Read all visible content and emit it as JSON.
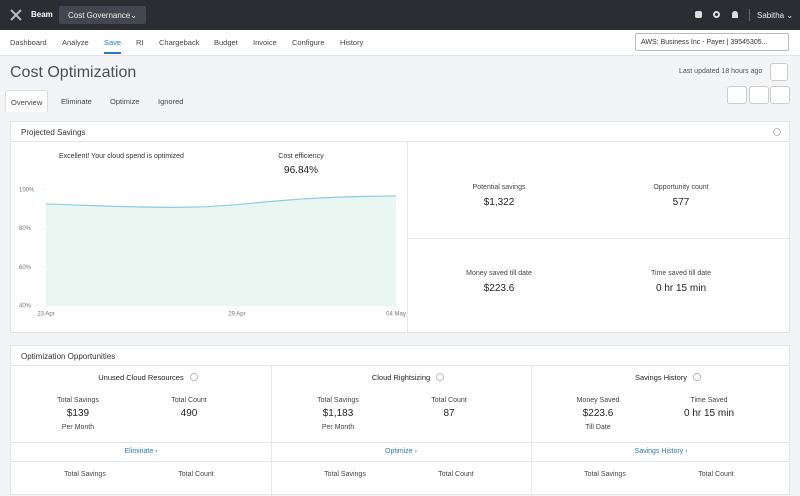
{
  "topbar": {
    "brand": "Beam",
    "selector": "Cost Governance",
    "user": "Sabitha"
  },
  "nav": {
    "tabs": [
      "Dashboard",
      "Analyze",
      "Save",
      "RI",
      "Chargeback",
      "Budget",
      "Invoice",
      "Configure",
      "History"
    ],
    "active": 2,
    "account": "AWS: Business Inc - Payer | 39545305..."
  },
  "header": {
    "title": "Cost Optimization",
    "last_updated": "Last updated 18 hours ago"
  },
  "subtabs": {
    "tabs": [
      "Overview",
      "Eliminate",
      "Optimize",
      "Ignored"
    ],
    "active": 0
  },
  "projected_savings": {
    "title": "Projected Savings",
    "message": "Excellent! Your cloud spend is optimized",
    "stats": [
      {
        "label": "Potential savings",
        "value": "$1,322"
      },
      {
        "label": "Opportunity count",
        "value": "577"
      },
      {
        "label": "Money saved till date",
        "value": "$223.6"
      },
      {
        "label": "Time saved till date",
        "value": "0 hr 15 min"
      }
    ]
  },
  "chart_data": {
    "type": "area",
    "title": "Cost efficiency",
    "subtitle": "96.84%",
    "categories": [
      "23 Apr",
      null,
      null,
      null,
      null,
      null,
      "29 Apr",
      null,
      null,
      null,
      null,
      "04 May"
    ],
    "values": [
      92.8,
      92.2,
      91.6,
      91.2,
      91.0,
      91.3,
      92.4,
      94.0,
      95.3,
      96.2,
      96.7,
      96.9
    ],
    "color": "#8ccbe8",
    "ylim": [
      40,
      100
    ],
    "yticks": [
      {
        "value": 100,
        "label": "100%"
      },
      {
        "value": 80,
        "label": "80%"
      },
      {
        "value": 60,
        "label": "60%"
      },
      {
        "value": 40,
        "label": "40%"
      }
    ],
    "grid": false
  },
  "opportunities": {
    "title": "Optimization Opportunities",
    "cards": [
      {
        "title": "Unused Cloud Resources",
        "stats": [
          {
            "label": "Total Savings",
            "value": "$139",
            "note": "Per Month"
          },
          {
            "label": "Total Count",
            "value": "490"
          }
        ],
        "link": "Eliminate",
        "more": [
          "Total Savings",
          "Total Count"
        ]
      },
      {
        "title": "Cloud Rightsizing",
        "stats": [
          {
            "label": "Total Savings",
            "value": "$1,183",
            "note": "Per Month"
          },
          {
            "label": "Total Count",
            "value": "87"
          }
        ],
        "link": "Optimize",
        "more": [
          "Total Savings",
          "Total Count"
        ]
      },
      {
        "title": "Savings History",
        "stats": [
          {
            "label": "Money Saved",
            "value": "$223.6",
            "note": "Till Date"
          },
          {
            "label": "Time Saved",
            "value": "0 hr 15 min"
          }
        ],
        "link": "Savings History",
        "more": [
          "Total Savings",
          "Total Count"
        ]
      }
    ]
  }
}
